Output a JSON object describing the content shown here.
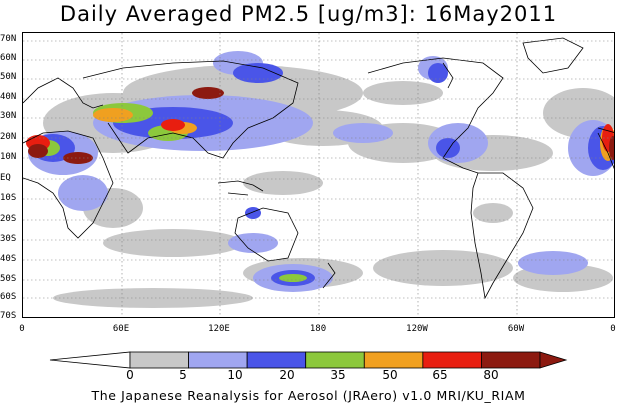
{
  "title": "Daily Averaged PM2.5 [ug/m3]: 16May2011",
  "footer": "The Japanese Reanalysis for Aerosol (JRAero) v1.0 MRI/KU_RIAM",
  "lat_labels": [
    "70N",
    "60N",
    "50N",
    "40N",
    "30N",
    "20N",
    "10N",
    "EQ",
    "10S",
    "20S",
    "30S",
    "40S",
    "50S",
    "60S",
    "70S"
  ],
  "lon_labels": [
    "0",
    "60E",
    "120E",
    "180",
    "120W",
    "60W",
    "0"
  ],
  "colorbar": {
    "labels": [
      "0",
      "5",
      "10",
      "20",
      "35",
      "50",
      "65",
      "80"
    ],
    "colors": [
      "#ffffff",
      "#c8c8c8",
      "#a0a6f0",
      "#4a55e8",
      "#8cc83c",
      "#f0a020",
      "#e81e10",
      "#8c1a10"
    ],
    "low_color": "#ffffff",
    "high_color": "#8c1a10"
  }
}
